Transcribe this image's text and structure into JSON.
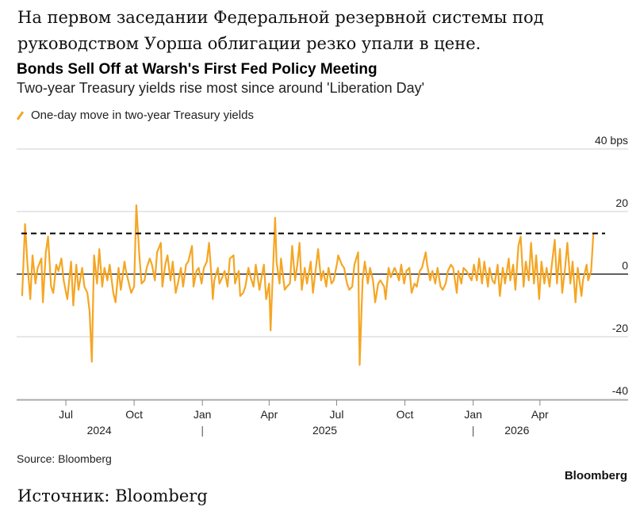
{
  "article": {
    "caption_top": "На первом заседании Федеральной резервной системы под руководством Уорша облигации резко упали в цене.",
    "caption_bottom": "Источник: Bloomberg"
  },
  "chart_data": {
    "type": "line",
    "title": "Bonds Sell Off at Warsh's First Fed Policy Meeting",
    "subtitle": "Two-year Treasury yields rise most since around 'Liberation Day'",
    "source": "Source: Bloomberg",
    "brand": "Bloomberg",
    "legend": {
      "label": "One-day move in two-year Treasury yields",
      "placement": "top-left"
    },
    "series_color": "#f5a623",
    "y_unit_label": "40 bps",
    "ylim": [
      -40,
      40
    ],
    "yticks": [
      {
        "value": 40,
        "label": "40 bps"
      },
      {
        "value": 20,
        "label": "20"
      },
      {
        "value": 0,
        "label": "0"
      },
      {
        "value": -20,
        "label": "-20"
      },
      {
        "value": -40,
        "label": "-40"
      }
    ],
    "xlim": [
      "2024-05-01",
      "2026-06-30"
    ],
    "xticks": [
      {
        "date": "2024-07-01",
        "label": "Jul"
      },
      {
        "date": "2024-10-01",
        "label": "Oct"
      },
      {
        "date": "2025-01-01",
        "label": "Jan"
      },
      {
        "date": "2025-04-01",
        "label": "Apr"
      },
      {
        "date": "2025-07-01",
        "label": "Jul"
      },
      {
        "date": "2025-10-01",
        "label": "Oct"
      },
      {
        "date": "2026-01-01",
        "label": "Jan"
      },
      {
        "date": "2026-04-01",
        "label": "Apr"
      }
    ],
    "year_labels": [
      {
        "date": "2024-08-15",
        "label": "2024"
      },
      {
        "date": "2025-06-15",
        "label": "2025"
      },
      {
        "date": "2026-03-01",
        "label": "2026"
      }
    ],
    "year_separators": [
      "2025-01-01",
      "2026-01-01"
    ],
    "reference_line": {
      "value": 13,
      "style": "dashed"
    },
    "grid": true,
    "series": [
      {
        "points": [
          [
            "2024-05-03",
            -7
          ],
          [
            "2024-05-07",
            16
          ],
          [
            "2024-05-10",
            4
          ],
          [
            "2024-05-14",
            -8
          ],
          [
            "2024-05-17",
            6
          ],
          [
            "2024-05-21",
            -3
          ],
          [
            "2024-05-24",
            2
          ],
          [
            "2024-05-29",
            5
          ],
          [
            "2024-05-31",
            -9
          ],
          [
            "2024-06-04",
            7
          ],
          [
            "2024-06-07",
            12
          ],
          [
            "2024-06-11",
            -4
          ],
          [
            "2024-06-14",
            -6
          ],
          [
            "2024-06-18",
            3
          ],
          [
            "2024-06-21",
            1
          ],
          [
            "2024-06-25",
            5
          ],
          [
            "2024-06-28",
            -2
          ],
          [
            "2024-07-03",
            -8
          ],
          [
            "2024-07-08",
            4
          ],
          [
            "2024-07-11",
            -10
          ],
          [
            "2024-07-15",
            3
          ],
          [
            "2024-07-18",
            -5
          ],
          [
            "2024-07-23",
            2
          ],
          [
            "2024-07-26",
            -4
          ],
          [
            "2024-07-30",
            -6
          ],
          [
            "2024-08-02",
            -12
          ],
          [
            "2024-08-05",
            -28
          ],
          [
            "2024-08-08",
            6
          ],
          [
            "2024-08-12",
            -3
          ],
          [
            "2024-08-15",
            8
          ],
          [
            "2024-08-19",
            -4
          ],
          [
            "2024-08-22",
            2
          ],
          [
            "2024-08-26",
            -2
          ],
          [
            "2024-08-29",
            3
          ],
          [
            "2024-09-03",
            -6
          ],
          [
            "2024-09-06",
            -9
          ],
          [
            "2024-09-10",
            2
          ],
          [
            "2024-09-13",
            -5
          ],
          [
            "2024-09-18",
            4
          ],
          [
            "2024-09-20",
            1
          ],
          [
            "2024-09-24",
            -3
          ],
          [
            "2024-09-27",
            -6
          ],
          [
            "2024-10-01",
            -4
          ],
          [
            "2024-10-04",
            22
          ],
          [
            "2024-10-08",
            6
          ],
          [
            "2024-10-11",
            -3
          ],
          [
            "2024-10-15",
            -2
          ],
          [
            "2024-10-18",
            2
          ],
          [
            "2024-10-22",
            5
          ],
          [
            "2024-10-25",
            3
          ],
          [
            "2024-10-29",
            -2
          ],
          [
            "2024-11-01",
            7
          ],
          [
            "2024-11-06",
            10
          ],
          [
            "2024-11-08",
            -4
          ],
          [
            "2024-11-12",
            3
          ],
          [
            "2024-11-15",
            6
          ],
          [
            "2024-11-19",
            -2
          ],
          [
            "2024-11-22",
            4
          ],
          [
            "2024-11-26",
            -6
          ],
          [
            "2024-11-29",
            -3
          ],
          [
            "2024-12-03",
            2
          ],
          [
            "2024-12-06",
            -4
          ],
          [
            "2024-12-10",
            3
          ],
          [
            "2024-12-13",
            4
          ],
          [
            "2024-12-18",
            9
          ],
          [
            "2024-12-20",
            -4
          ],
          [
            "2024-12-24",
            1
          ],
          [
            "2024-12-27",
            2
          ],
          [
            "2024-12-31",
            -3
          ],
          [
            "2025-01-03",
            2
          ],
          [
            "2025-01-07",
            4
          ],
          [
            "2025-01-10",
            10
          ],
          [
            "2025-01-14",
            -3
          ],
          [
            "2025-01-15",
            -8
          ],
          [
            "2025-01-17",
            -2
          ],
          [
            "2025-01-22",
            2
          ],
          [
            "2025-01-24",
            -3
          ],
          [
            "2025-01-28",
            -1
          ],
          [
            "2025-01-31",
            1
          ],
          [
            "2025-02-04",
            -4
          ],
          [
            "2025-02-07",
            5
          ],
          [
            "2025-02-12",
            6
          ],
          [
            "2025-02-14",
            -3
          ],
          [
            "2025-02-19",
            1
          ],
          [
            "2025-02-21",
            -7
          ],
          [
            "2025-02-25",
            -6
          ],
          [
            "2025-02-28",
            -4
          ],
          [
            "2025-03-04",
            2
          ],
          [
            "2025-03-07",
            -1
          ],
          [
            "2025-03-11",
            -4
          ],
          [
            "2025-03-14",
            3
          ],
          [
            "2025-03-19",
            -5
          ],
          [
            "2025-03-21",
            -2
          ],
          [
            "2025-03-25",
            3
          ],
          [
            "2025-03-28",
            -8
          ],
          [
            "2025-04-01",
            -3
          ],
          [
            "2025-04-03",
            -18
          ],
          [
            "2025-04-04",
            -11
          ],
          [
            "2025-04-07",
            6
          ],
          [
            "2025-04-09",
            18
          ],
          [
            "2025-04-11",
            4
          ],
          [
            "2025-04-15",
            -3
          ],
          [
            "2025-04-17",
            5
          ],
          [
            "2025-04-22",
            -5
          ],
          [
            "2025-04-25",
            -4
          ],
          [
            "2025-04-29",
            -3
          ],
          [
            "2025-05-02",
            9
          ],
          [
            "2025-05-06",
            -2
          ],
          [
            "2025-05-09",
            3
          ],
          [
            "2025-05-12",
            10
          ],
          [
            "2025-05-15",
            -5
          ],
          [
            "2025-05-19",
            2
          ],
          [
            "2025-05-22",
            -3
          ],
          [
            "2025-05-27",
            4
          ],
          [
            "2025-05-30",
            -6
          ],
          [
            "2025-06-03",
            2
          ],
          [
            "2025-06-06",
            8
          ],
          [
            "2025-06-10",
            -2
          ],
          [
            "2025-06-13",
            1
          ],
          [
            "2025-06-17",
            -4
          ],
          [
            "2025-06-20",
            2
          ],
          [
            "2025-06-24",
            -3
          ],
          [
            "2025-06-27",
            -2
          ],
          [
            "2025-07-02",
            4
          ],
          [
            "2025-07-03",
            6
          ],
          [
            "2025-07-08",
            3
          ],
          [
            "2025-07-11",
            2
          ],
          [
            "2025-07-15",
            -3
          ],
          [
            "2025-07-18",
            -5
          ],
          [
            "2025-07-22",
            -4
          ],
          [
            "2025-07-25",
            3
          ],
          [
            "2025-07-30",
            7
          ],
          [
            "2025-08-01",
            -29
          ],
          [
            "2025-08-05",
            -2
          ],
          [
            "2025-08-08",
            4
          ],
          [
            "2025-08-12",
            -3
          ],
          [
            "2025-08-15",
            2
          ],
          [
            "2025-08-19",
            -2
          ],
          [
            "2025-08-22",
            -9
          ],
          [
            "2025-08-26",
            -3
          ],
          [
            "2025-08-29",
            -2
          ],
          [
            "2025-09-03",
            -4
          ],
          [
            "2025-09-05",
            -8
          ],
          [
            "2025-09-09",
            2
          ],
          [
            "2025-09-12",
            -1
          ],
          [
            "2025-09-17",
            2
          ],
          [
            "2025-09-19",
            1
          ],
          [
            "2025-09-23",
            -2
          ],
          [
            "2025-09-26",
            3
          ],
          [
            "2025-09-30",
            -3
          ],
          [
            "2025-10-03",
            1
          ],
          [
            "2025-10-07",
            2
          ],
          [
            "2025-10-10",
            -6
          ],
          [
            "2025-10-14",
            -3
          ],
          [
            "2025-10-17",
            -4
          ],
          [
            "2025-10-21",
            1
          ],
          [
            "2025-10-24",
            2
          ],
          [
            "2025-10-29",
            7
          ],
          [
            "2025-10-31",
            3
          ],
          [
            "2025-11-04",
            -2
          ],
          [
            "2025-11-07",
            1
          ],
          [
            "2025-11-11",
            -3
          ],
          [
            "2025-11-14",
            2
          ],
          [
            "2025-11-18",
            -4
          ],
          [
            "2025-11-21",
            -5
          ],
          [
            "2025-11-25",
            -3
          ],
          [
            "2025-11-28",
            1
          ],
          [
            "2025-12-02",
            3
          ],
          [
            "2025-12-05",
            2
          ],
          [
            "2025-12-10",
            -6
          ],
          [
            "2025-12-12",
            1
          ],
          [
            "2025-12-16",
            -3
          ],
          [
            "2025-12-19",
            2
          ],
          [
            "2025-12-23",
            1
          ],
          [
            "2025-12-30",
            -2
          ],
          [
            "2026-01-02",
            3
          ],
          [
            "2026-01-06",
            -2
          ],
          [
            "2026-01-09",
            5
          ],
          [
            "2026-01-13",
            -3
          ],
          [
            "2026-01-16",
            4
          ],
          [
            "2026-01-21",
            -4
          ],
          [
            "2026-01-23",
            2
          ],
          [
            "2026-01-27",
            -2
          ],
          [
            "2026-01-30",
            -3
          ],
          [
            "2026-02-03",
            3
          ],
          [
            "2026-02-06",
            -7
          ],
          [
            "2026-02-10",
            2
          ],
          [
            "2026-02-13",
            -3
          ],
          [
            "2026-02-18",
            5
          ],
          [
            "2026-02-20",
            -2
          ],
          [
            "2026-02-24",
            3
          ],
          [
            "2026-02-27",
            -5
          ],
          [
            "2026-03-03",
            9
          ],
          [
            "2026-03-06",
            12
          ],
          [
            "2026-03-10",
            -4
          ],
          [
            "2026-03-13",
            4
          ],
          [
            "2026-03-17",
            -2
          ],
          [
            "2026-03-20",
            10
          ],
          [
            "2026-03-24",
            -3
          ],
          [
            "2026-03-27",
            6
          ],
          [
            "2026-03-31",
            -8
          ],
          [
            "2026-04-03",
            4
          ],
          [
            "2026-04-07",
            -3
          ],
          [
            "2026-04-10",
            2
          ],
          [
            "2026-04-14",
            -4
          ],
          [
            "2026-04-17",
            3
          ],
          [
            "2026-04-21",
            11
          ],
          [
            "2026-04-24",
            -3
          ],
          [
            "2026-04-28",
            8
          ],
          [
            "2026-05-01",
            -6
          ],
          [
            "2026-05-05",
            2
          ],
          [
            "2026-05-08",
            10
          ],
          [
            "2026-05-12",
            -3
          ],
          [
            "2026-05-15",
            4
          ],
          [
            "2026-05-19",
            -9
          ],
          [
            "2026-05-22",
            2
          ],
          [
            "2026-05-27",
            -7
          ],
          [
            "2026-05-29",
            -2
          ],
          [
            "2026-06-03",
            3
          ],
          [
            "2026-06-05",
            -2
          ],
          [
            "2026-06-09",
            1
          ],
          [
            "2026-06-12",
            13
          ]
        ]
      }
    ]
  }
}
